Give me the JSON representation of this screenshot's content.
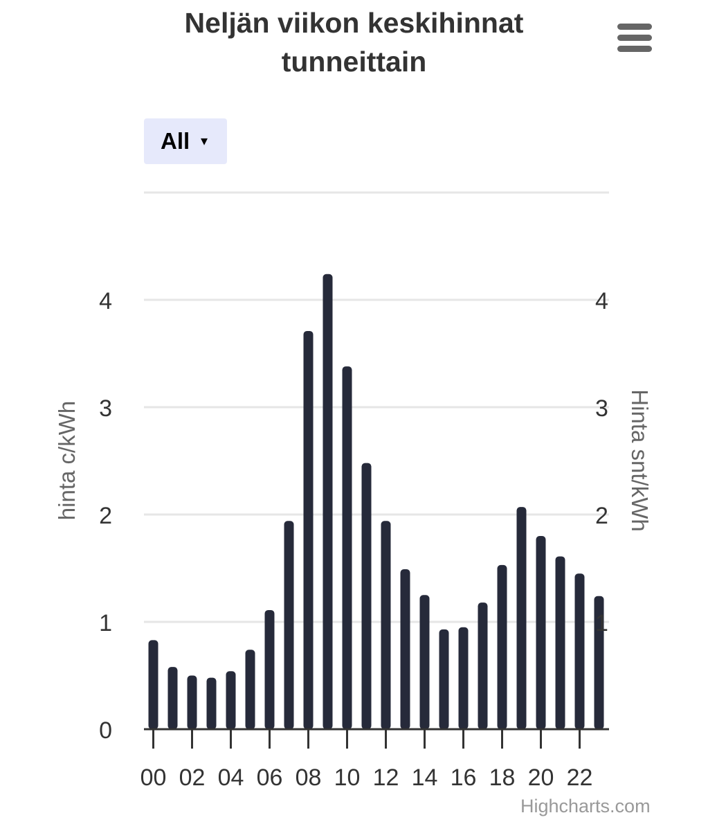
{
  "title_lines": [
    "Neljän viikon keskihinnat",
    "tunneittain"
  ],
  "range_selector": {
    "selected": "All"
  },
  "credits": "Highcharts.com",
  "icons": {
    "menu": "hamburger-menu-icon",
    "dropdown": "caret-down-icon"
  },
  "chart_data": {
    "type": "bar",
    "categories": [
      "00",
      "01",
      "02",
      "03",
      "04",
      "05",
      "06",
      "07",
      "08",
      "09",
      "10",
      "11",
      "12",
      "13",
      "14",
      "15",
      "16",
      "17",
      "18",
      "19",
      "20",
      "21",
      "22",
      "23"
    ],
    "x_tick_labels": [
      "00",
      "02",
      "04",
      "06",
      "08",
      "10",
      "12",
      "14",
      "16",
      "18",
      "20",
      "22"
    ],
    "series": [
      {
        "values": [
          0.83,
          0.58,
          0.5,
          0.48,
          0.54,
          0.74,
          1.11,
          1.94,
          3.71,
          4.24,
          3.38,
          2.48,
          1.94,
          1.49,
          1.25,
          0.93,
          0.95,
          1.18,
          1.53,
          2.07,
          1.8,
          1.61,
          1.45,
          1.24
        ],
        "color": "#262a3a"
      }
    ],
    "ylabel_left": "hinta c/kWh",
    "ylabel_right": "Hinta snt/kWh",
    "y_ticks": [
      0,
      1,
      2,
      3,
      4
    ],
    "y_ticks_right": [
      1,
      2,
      3,
      4
    ],
    "ylim": [
      0,
      5
    ],
    "grid": true,
    "bar_color": "#262a3a",
    "grid_color": "#e6e6e6"
  }
}
